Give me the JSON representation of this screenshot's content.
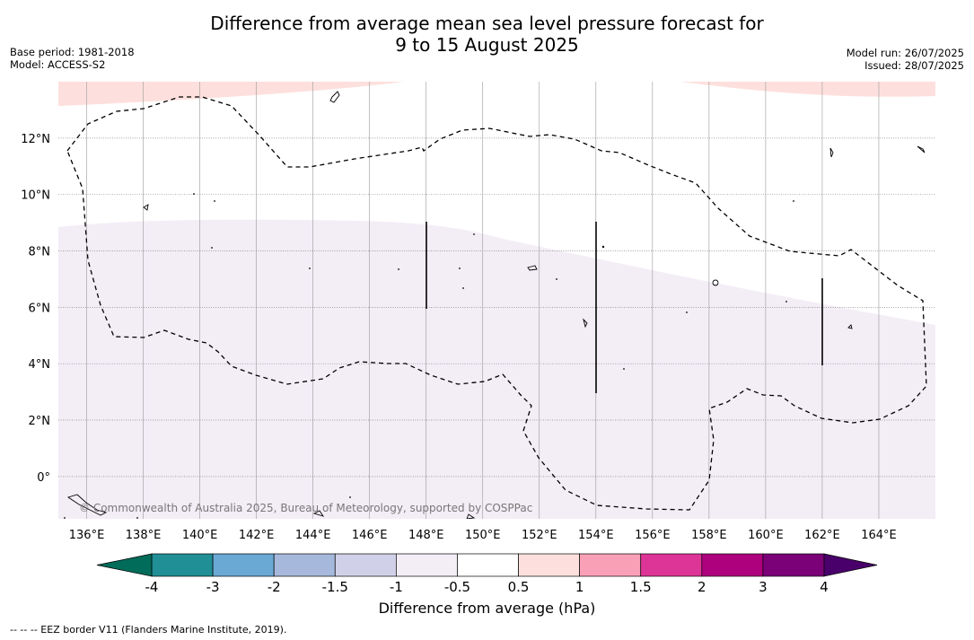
{
  "title_line1": "Difference from average mean sea level pressure forecast for",
  "title_line2": "9 to 15 August 2025",
  "meta_left": [
    "Base period: 1981-2018",
    "Model: ACCESS-S2"
  ],
  "meta_right": [
    "Model run: 26/07/2025",
    "Issued: 28/07/2025"
  ],
  "map": {
    "lon_range": [
      135,
      166
    ],
    "lat_range": [
      -1.5,
      14
    ],
    "lon_ticks": [
      "136°E",
      "138°E",
      "140°E",
      "142°E",
      "144°E",
      "146°E",
      "148°E",
      "150°E",
      "152°E",
      "154°E",
      "156°E",
      "158°E",
      "160°E",
      "162°E",
      "164°E"
    ],
    "lon_tick_values": [
      136,
      138,
      140,
      142,
      144,
      146,
      148,
      150,
      152,
      154,
      156,
      158,
      160,
      162,
      164
    ],
    "lat_ticks": [
      "12°N",
      "10°N",
      "8°N",
      "6°N",
      "4°N",
      "2°N",
      "0°"
    ],
    "lat_tick_values": [
      12,
      10,
      8,
      6,
      4,
      2,
      0
    ],
    "copyright": "© Commonwealth of Australia 2025, Bureau of Meteorology, supported by COSPPac",
    "regions": [
      {
        "name": "positive-0.5-1-north-west",
        "class": "0.5 to 1"
      },
      {
        "name": "positive-0.5-1-north-east",
        "class": "0.5 to 1"
      },
      {
        "name": "negative-1-0.5-south",
        "class": "-1 to -0.5"
      }
    ]
  },
  "colorbar": {
    "ticks": [
      "-4",
      "-3",
      "-2",
      "-1.5",
      "-1",
      "-0.5",
      "0.5",
      "1",
      "1.5",
      "2",
      "3",
      "4"
    ],
    "colors": [
      "#218f96",
      "#6aa9d4",
      "#a6b9dc",
      "#d0d1e8",
      "#f3edf6",
      "#ffffff",
      "#fde0dd",
      "#f9a0b6",
      "#dd3597",
      "#ae017e",
      "#7a0177"
    ],
    "under_color": "#016c59",
    "over_color": "#49006a",
    "label": "Difference from average (hPa)"
  },
  "footnote": "--  --  -- EEZ border V11 (Flanders Marine Institute, 2019)."
}
